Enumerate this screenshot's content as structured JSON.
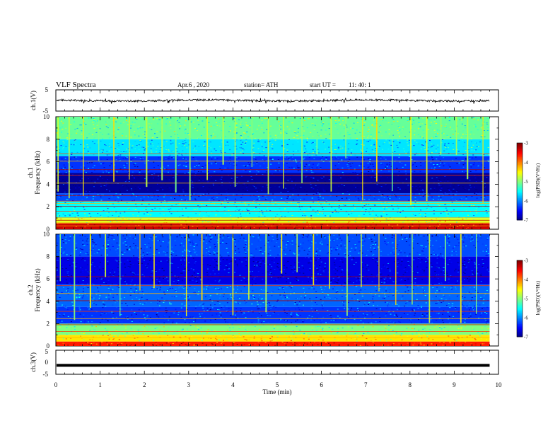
{
  "header": {
    "title": "VLF  Spectra",
    "date": "Apr.6  , 2020",
    "station": "station= ATH",
    "start_label": "start  UT  =",
    "start_time": "11: 40: 1"
  },
  "chart_data": [
    {
      "id": "ch1_waveform",
      "type": "line",
      "ylabel": "ch.1(V)",
      "ylim": [
        -5,
        5
      ],
      "yticks": [
        "5",
        "-5"
      ],
      "x_range_min": [
        0,
        9.8
      ],
      "series": [
        {
          "values_summary": "noisy waveform centered near 0 V, amplitude about ±1 V"
        }
      ]
    },
    {
      "id": "ch1_spectrogram",
      "type": "heatmap",
      "ylabel_line1": "ch.1",
      "ylabel_line2": "Frequency  (kHz)",
      "ylim": [
        0,
        10
      ],
      "yticks": [
        "0",
        "2",
        "4",
        "6",
        "8",
        "10"
      ],
      "x_range_min": [
        0,
        9.8
      ],
      "colorbar": {
        "label": "log(PSD)(V²/Hz)",
        "range": [
          -7,
          -3
        ],
        "ticks": [
          "-3",
          "-4",
          "-5",
          "-6",
          "-7"
        ]
      },
      "bands": [
        {
          "f": [
            0.0,
            0.5
          ],
          "level": -3.3
        },
        {
          "f": [
            0.5,
            1.0
          ],
          "level": -4.6
        },
        {
          "f": [
            1.0,
            2.5
          ],
          "level": -5.5
        },
        {
          "f": [
            2.5,
            3.2
          ],
          "level": -6.2
        },
        {
          "f": [
            3.2,
            5.0
          ],
          "level": -6.9
        },
        {
          "f": [
            5.0,
            6.5
          ],
          "level": -6.3
        },
        {
          "f": [
            6.5,
            8.0
          ],
          "level": -5.6
        },
        {
          "f": [
            8.0,
            10.0
          ],
          "level": -5.1
        }
      ],
      "lines_khz": [
        0.3,
        0.55,
        0.8,
        1.05,
        1.6,
        2.05,
        2.3,
        2.5,
        3.0,
        4.1,
        4.8,
        5.3,
        6.05,
        6.7
      ],
      "spherics_min": [
        0.05,
        0.3,
        0.62,
        0.97,
        1.31,
        1.66,
        2.05,
        2.4,
        2.71,
        3.03,
        3.42,
        3.78,
        4.05,
        4.43,
        4.8,
        5.14,
        5.56,
        5.9,
        6.22,
        6.55,
        6.93,
        7.25,
        7.6,
        8.02,
        8.38,
        8.7,
        9.05,
        9.3,
        9.65
      ]
    },
    {
      "id": "ch2_spectrogram",
      "type": "heatmap",
      "ylabel_line1": "ch.2",
      "ylabel_line2": "Frequency  (kHz)",
      "ylim": [
        0,
        10
      ],
      "yticks": [
        "0",
        "2",
        "4",
        "6",
        "8",
        "10"
      ],
      "x_range_min": [
        0,
        9.8
      ],
      "colorbar": {
        "label": "log(PSD)(V²/Hz)",
        "range": [
          -7,
          -3
        ],
        "ticks": [
          "-3",
          "-4",
          "-5",
          "-6",
          "-7"
        ]
      },
      "bands": [
        {
          "f": [
            0.0,
            0.4
          ],
          "level": -3.6
        },
        {
          "f": [
            0.4,
            1.0
          ],
          "level": -4.4
        },
        {
          "f": [
            1.0,
            2.0
          ],
          "level": -5.0
        },
        {
          "f": [
            2.0,
            3.5
          ],
          "level": -6.3
        },
        {
          "f": [
            3.5,
            5.5
          ],
          "level": -6.1
        },
        {
          "f": [
            5.5,
            8.0
          ],
          "level": -6.6
        },
        {
          "f": [
            8.0,
            10.0
          ],
          "level": -6.2
        }
      ],
      "lines_khz": [
        0.75,
        1.3,
        1.9,
        2.45,
        3.1,
        4.05,
        4.7,
        5.4,
        6.2
      ],
      "spherics_min": [
        0.1,
        0.42,
        0.78,
        1.12,
        1.45,
        1.9,
        2.22,
        2.58,
        2.95,
        3.3,
        3.68,
        4.0,
        4.36,
        4.75,
        5.1,
        5.45,
        5.82,
        6.18,
        6.58,
        6.9,
        7.3,
        7.68,
        8.05,
        8.44,
        8.8,
        9.15,
        9.5
      ]
    },
    {
      "id": "ch3_waveform",
      "type": "line",
      "ylabel": "ch.3(V)",
      "ylim": [
        -5,
        5
      ],
      "yticks": [
        "5",
        "0",
        "-5"
      ],
      "xlabel": "Time  (min)",
      "xlim": [
        0,
        10
      ],
      "xticks": [
        "0",
        "1",
        "2",
        "3",
        "4",
        "5",
        "6",
        "7",
        "8",
        "9",
        "10"
      ],
      "x_range_min": [
        0,
        9.8
      ],
      "series": [
        {
          "values_summary": "flat line at about -1.3 V"
        }
      ],
      "level_v": -1.3
    }
  ]
}
